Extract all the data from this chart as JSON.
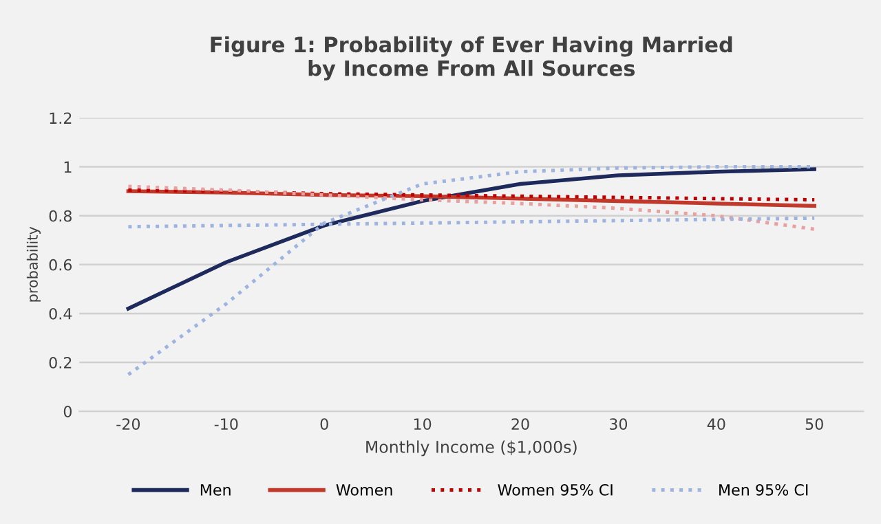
{
  "chart_data": {
    "type": "line",
    "title": "Figure 1: Probability of Ever Having Married\nby Income From All Sources",
    "xlabel": "Monthly Income ($1,000s)",
    "ylabel": "probability",
    "categories": [
      "-20",
      "-10",
      "0",
      "10",
      "20",
      "30",
      "40",
      "50"
    ],
    "series": [
      {
        "name": "Men",
        "color": "#1f2a5c",
        "line_style": "solid",
        "values": [
          0.42,
          0.61,
          0.76,
          0.86,
          0.93,
          0.965,
          0.98,
          0.99
        ]
      },
      {
        "name": "Women",
        "color": "#c0392b",
        "line_style": "solid",
        "values": [
          0.9,
          0.895,
          0.885,
          0.88,
          0.87,
          0.86,
          0.85,
          0.84
        ]
      },
      {
        "name": "Women 95% CI",
        "color": "#c00000",
        "line_style": "dotted",
        "values": [
          0.905,
          0.9,
          0.89,
          0.885,
          0.88,
          0.875,
          0.87,
          0.865
        ]
      },
      {
        "color": "#e8a0a0",
        "line_style": "dotted",
        "values": [
          0.92,
          0.905,
          0.885,
          0.865,
          0.85,
          0.83,
          0.8,
          0.745
        ]
      },
      {
        "name": "Men 95% CI",
        "color": "#9db3e0",
        "line_style": "dotted",
        "values": [
          0.15,
          0.44,
          0.77,
          0.93,
          0.98,
          0.995,
          1.0,
          1.0
        ]
      },
      {
        "color": "#9db3e0",
        "line_style": "dotted",
        "values": [
          0.755,
          0.76,
          0.765,
          0.77,
          0.775,
          0.78,
          0.785,
          0.79
        ]
      }
    ],
    "ylim": [
      0,
      1.2
    ],
    "yticks": [
      0,
      0.2,
      0.4,
      0.6,
      0.8,
      1,
      1.2
    ],
    "grid": "y",
    "legend": "bottom",
    "marker": "none"
  }
}
